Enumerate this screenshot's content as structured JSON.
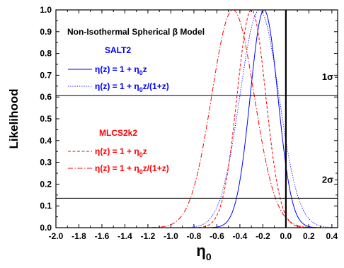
{
  "chart_data": {
    "type": "line",
    "title": "Non-Isothermal Spherical β Model",
    "xlabel_main": "η",
    "xlabel_sub": "0",
    "ylabel": "Likelihood",
    "xlim": [
      -2.0,
      0.45
    ],
    "ylim": [
      0.0,
      1.0
    ],
    "x_ticks": [
      -2.0,
      -1.8,
      -1.6,
      -1.4,
      -1.2,
      -1.0,
      -0.8,
      -0.6,
      -0.4,
      -0.2,
      0.0,
      0.2,
      0.4
    ],
    "x_tick_labels": [
      "-2.0",
      "-1.8",
      "-1.6",
      "-1.4",
      "-1.2",
      "-1.0",
      "-0.8",
      "-0.6",
      "-0.4",
      "-0.2",
      "0.0",
      "0.2",
      "0.4"
    ],
    "y_ticks": [
      0.0,
      0.1,
      0.2,
      0.3,
      0.4,
      0.5,
      0.6,
      0.7,
      0.8,
      0.9,
      1.0
    ],
    "y_tick_labels": [
      "0.0",
      "0.1",
      "0.2",
      "0.3",
      "0.4",
      "0.5",
      "0.6",
      "0.7",
      "0.8",
      "0.9",
      "1.0"
    ],
    "grid": false,
    "legend_groups": [
      {
        "name": "SALT2",
        "color": "#0000ff",
        "entries": [
          {
            "pre": "η(z) = 1 + η",
            "sub": "0",
            "post": "z",
            "dash": "solid"
          },
          {
            "pre": "η(z) = 1 + η",
            "sub": "0",
            "post": "z/(1+z)",
            "dash": "dot"
          }
        ]
      },
      {
        "name": "MLCS2k2",
        "color": "#ff0000",
        "entries": [
          {
            "pre": "η(z) = 1 + η",
            "sub": "0",
            "post": "z",
            "dash": "dash"
          },
          {
            "pre": "η(z) = 1 + η",
            "sub": "0",
            "post": "z/(1+z)",
            "dash": "dashdot"
          }
        ]
      }
    ],
    "reference_lines": {
      "horizontal": [
        {
          "y": 0.6065,
          "label": "1σ"
        },
        {
          "y": 0.1353,
          "label": "2σ"
        }
      ],
      "vertical": [
        {
          "x": 0.0
        }
      ]
    },
    "series": [
      {
        "group": "SALT2",
        "dash": "solid",
        "color": "#0000ff",
        "peak_x": -0.19,
        "sigma": 0.12
      },
      {
        "group": "SALT2",
        "dash": "dot",
        "color": "#0000ff",
        "peak_x": -0.23,
        "sigma": 0.17
      },
      {
        "group": "MLCS2k2",
        "dash": "dash",
        "color": "#ff0000",
        "peak_x": -0.3,
        "sigma": 0.125
      },
      {
        "group": "MLCS2k2",
        "dash": "dashdot",
        "color": "#ff0000",
        "peak_x": -0.46,
        "sigma": 0.185
      }
    ]
  }
}
